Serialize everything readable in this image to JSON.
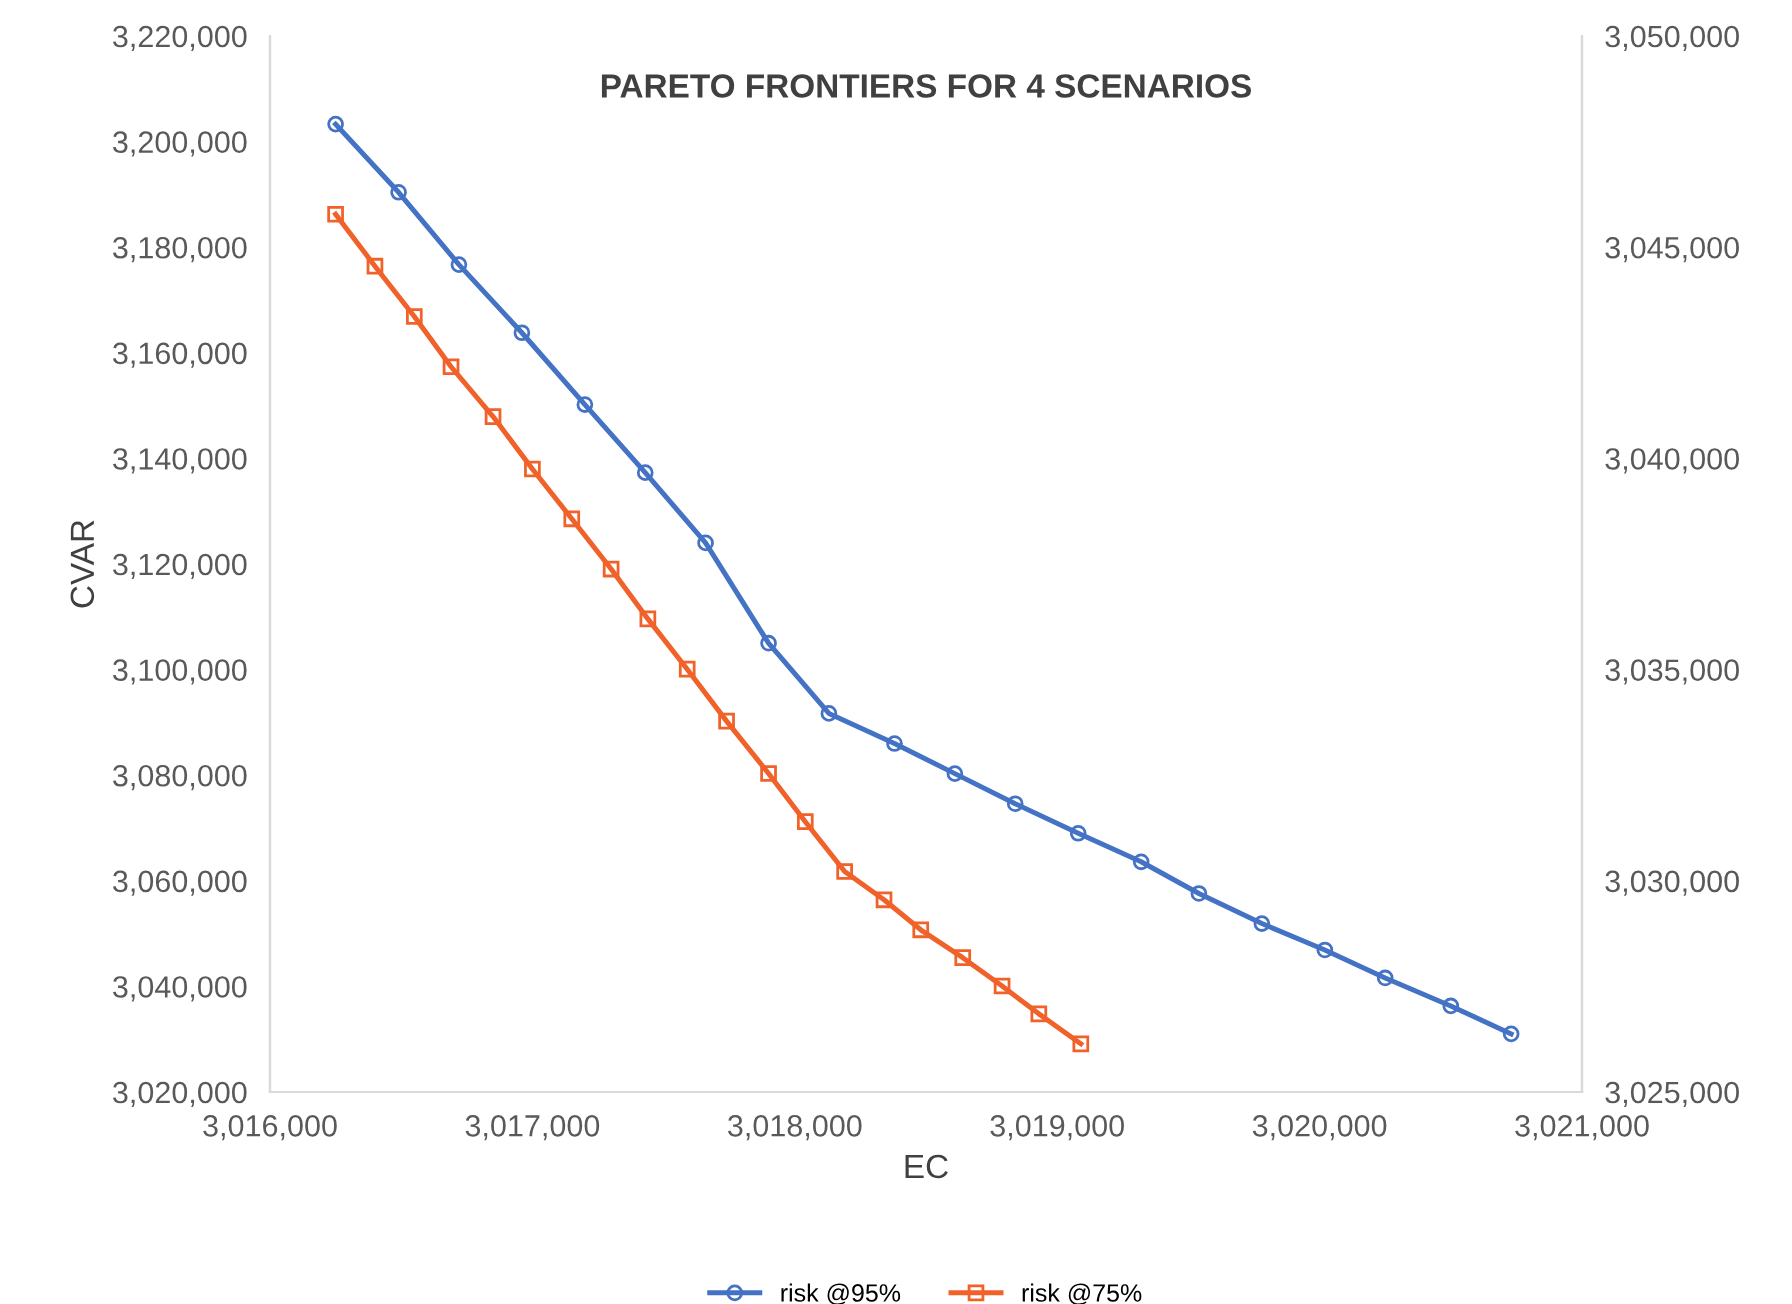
{
  "chart_data": {
    "type": "line",
    "title": "PARETO FRONTIERS FOR 4 SCENARIOS",
    "xlabel": "EC",
    "ylabel": "CVAR",
    "series": [
      {
        "name": "risk @95%",
        "color": "#4472c4",
        "marker": "circle",
        "x": [
          3016250,
          3016490,
          3016720,
          3016960,
          3017200,
          3017430,
          3017660,
          3017900,
          3018130,
          3018380,
          3018610,
          3018840,
          3019080,
          3019320,
          3019540,
          3019780,
          3020020,
          3020250,
          3020500,
          3020730
        ],
        "values": [
          3203300,
          3190400,
          3176700,
          3163800,
          3150200,
          3137300,
          3124000,
          3105000,
          3091700,
          3086000,
          3080300,
          3074600,
          3069000,
          3063600,
          3057600,
          3051900,
          3046900,
          3041600,
          3036300,
          3031000
        ]
      },
      {
        "name": "risk @75%",
        "color": "#f0622a",
        "marker": "square",
        "axis": "y2",
        "x": [
          3016250,
          3016400,
          3016550,
          3016690,
          3016850,
          3017000,
          3017150,
          3017300,
          3017440,
          3017590,
          3017740,
          3017900,
          3018040,
          3018190,
          3018340,
          3018480,
          3018640,
          3018790,
          3018930,
          3019090
        ],
        "values": [
          3045780,
          3044550,
          3043360,
          3042170,
          3040990,
          3039750,
          3038570,
          3037380,
          3036200,
          3035010,
          3033780,
          3032540,
          3031400,
          3030220,
          3029550,
          3028840,
          3028180,
          3027510,
          3026850,
          3026140
        ]
      }
    ],
    "xlim": [
      3016000,
      3021000
    ],
    "xticks": [
      {
        "value": 3016000,
        "label": "3,016,000"
      },
      {
        "value": 3017000,
        "label": "3,017,000"
      },
      {
        "value": 3018000,
        "label": "3,018,000"
      },
      {
        "value": 3019000,
        "label": "3,019,000"
      },
      {
        "value": 3020000,
        "label": "3,020,000"
      },
      {
        "value": 3021000,
        "label": "3,021,000"
      }
    ],
    "ylim": [
      3020000,
      3220000
    ],
    "yticks": [
      {
        "value": 3020000,
        "label": "3,020,000"
      },
      {
        "value": 3040000,
        "label": "3,040,000"
      },
      {
        "value": 3060000,
        "label": "3,060,000"
      },
      {
        "value": 3080000,
        "label": "3,080,000"
      },
      {
        "value": 3100000,
        "label": "3,100,000"
      },
      {
        "value": 3120000,
        "label": "3,120,000"
      },
      {
        "value": 3140000,
        "label": "3,140,000"
      },
      {
        "value": 3160000,
        "label": "3,160,000"
      },
      {
        "value": 3180000,
        "label": "3,180,000"
      },
      {
        "value": 3200000,
        "label": "3,200,000"
      },
      {
        "value": 3220000,
        "label": "3,220,000"
      }
    ],
    "y2lim": [
      3025000,
      3050000
    ],
    "y2ticks": [
      {
        "value": 3025000,
        "label": "3,025,000"
      },
      {
        "value": 3030000,
        "label": "3,030,000"
      },
      {
        "value": 3035000,
        "label": "3,035,000"
      },
      {
        "value": 3040000,
        "label": "3,040,000"
      },
      {
        "value": 3045000,
        "label": "3,045,000"
      },
      {
        "value": 3050000,
        "label": "3,050,000"
      }
    ],
    "grid": false,
    "legend": "bottom",
    "line_style": "solid"
  }
}
